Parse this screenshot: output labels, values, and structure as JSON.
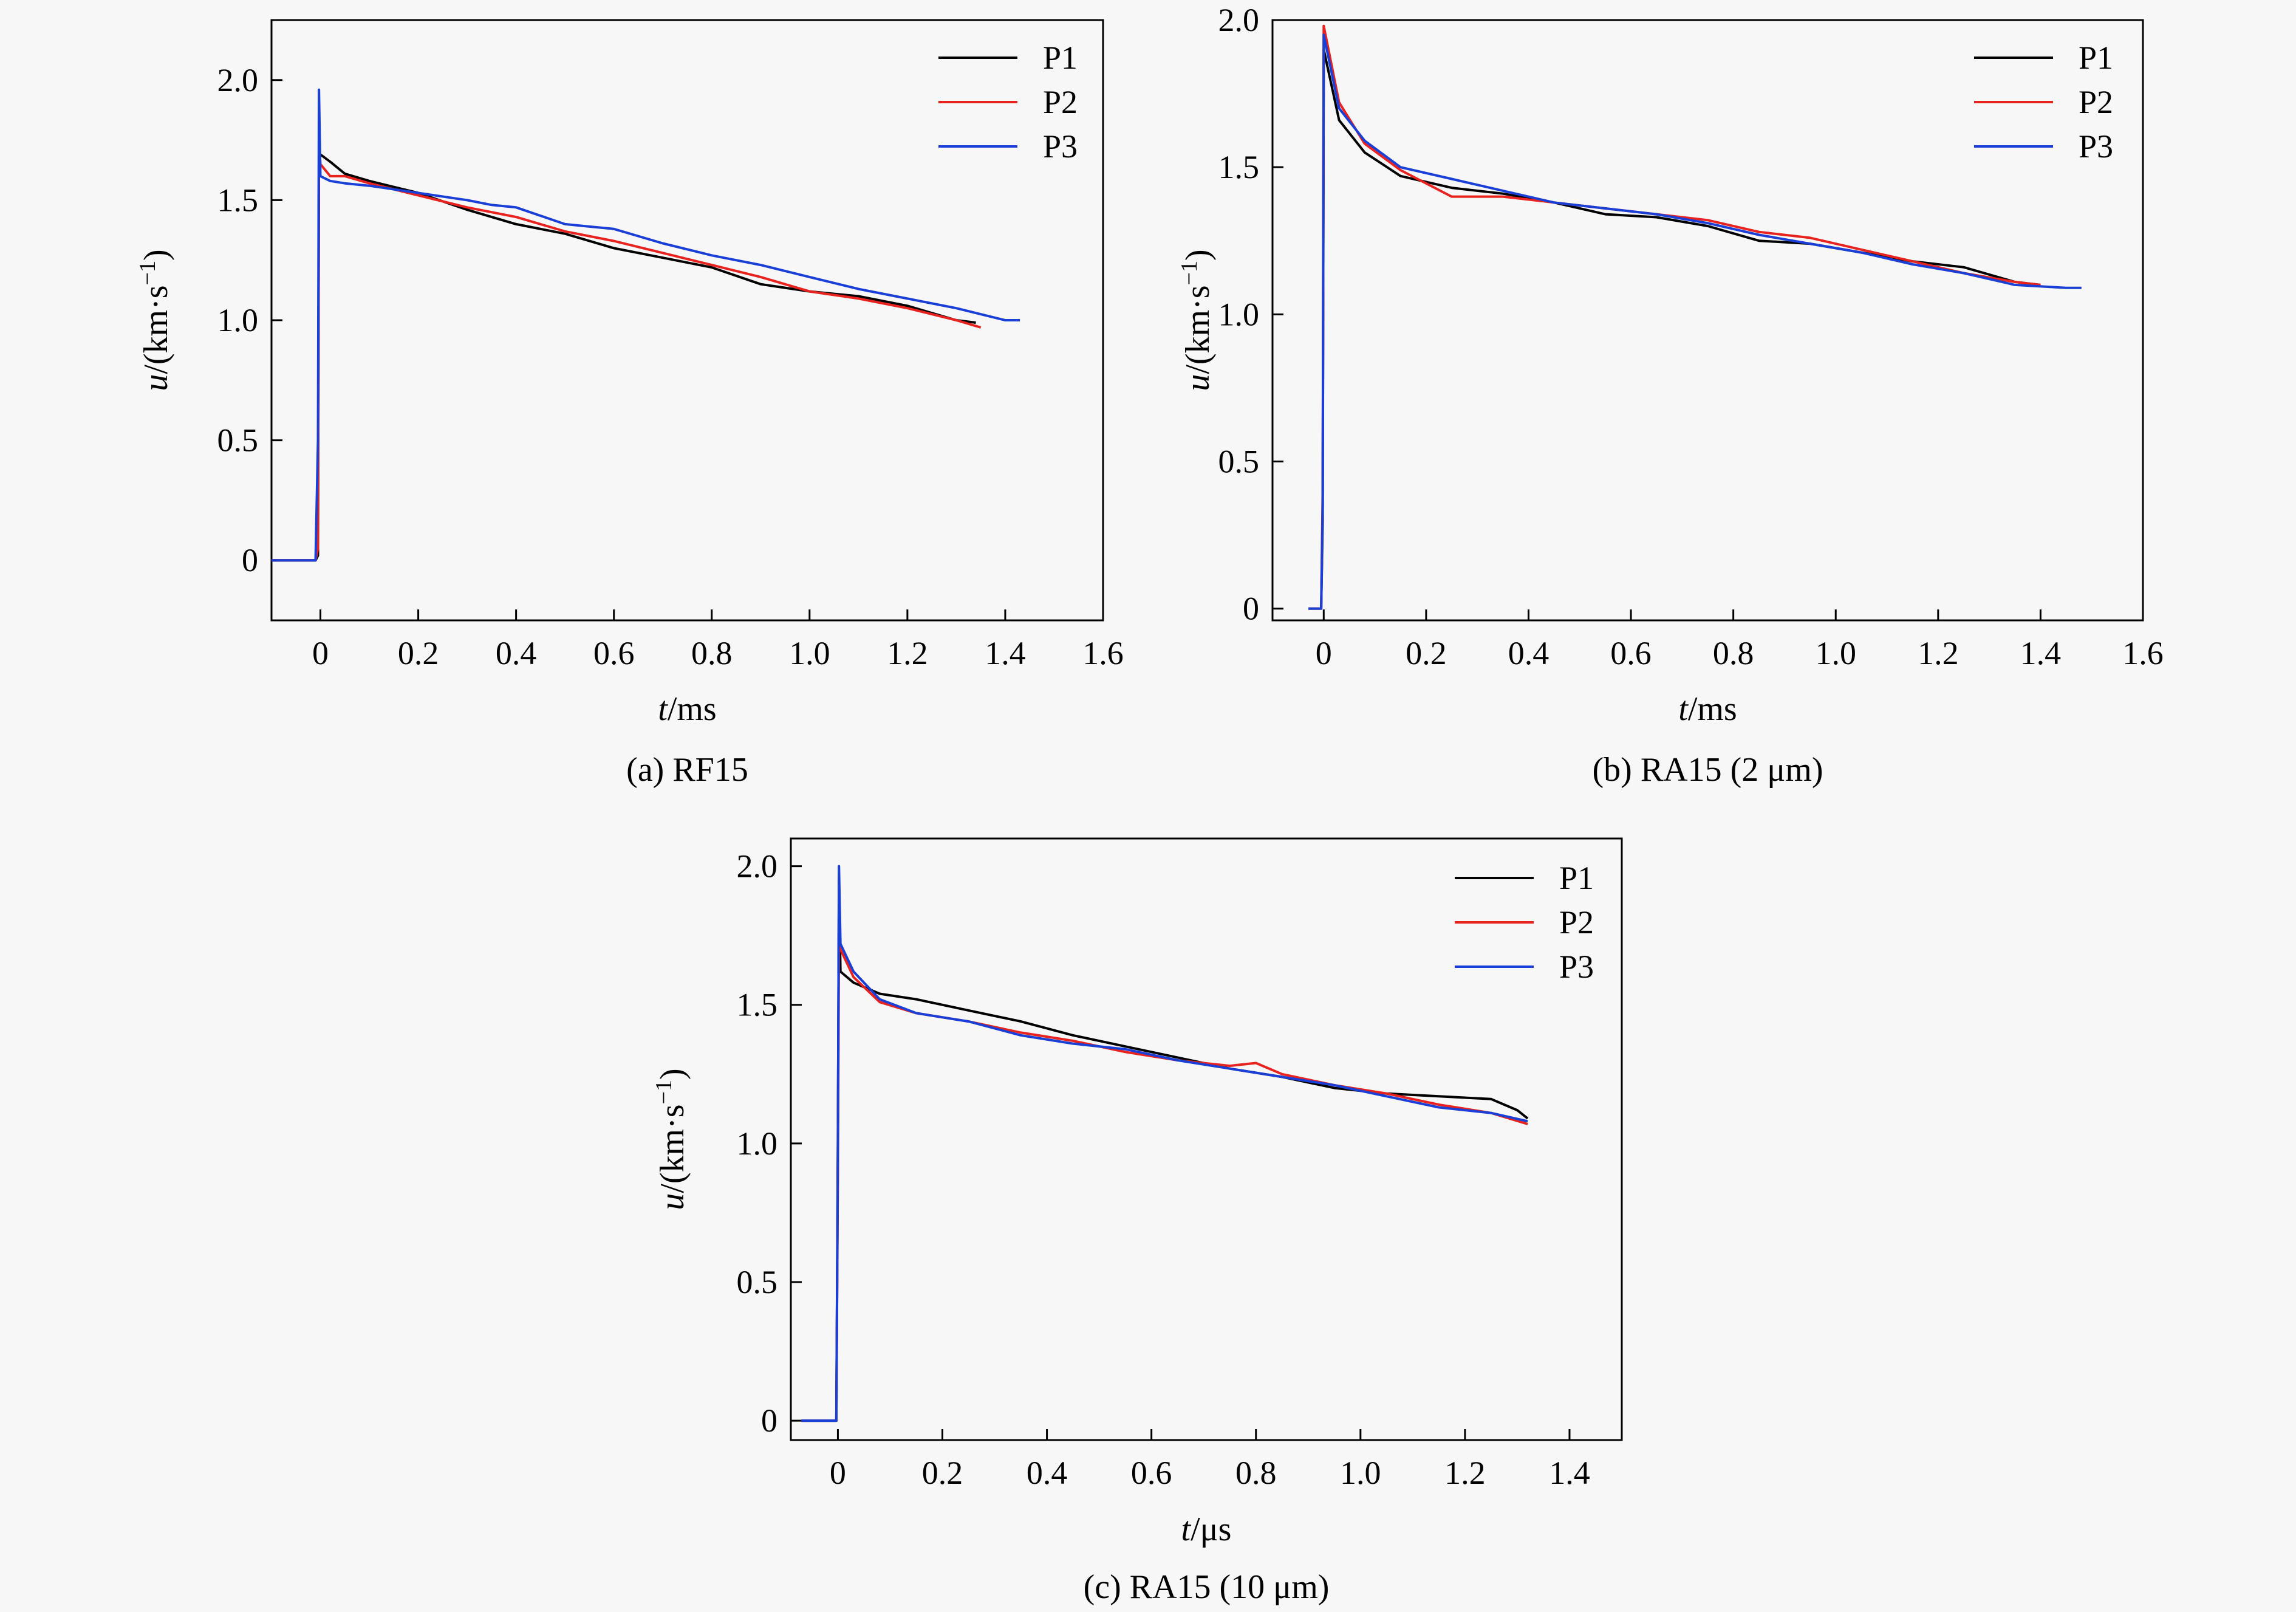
{
  "chart_data": [
    {
      "type": "line",
      "caption": "(a) RF15",
      "xlabel_italic": "t",
      "xlabel_unit": "/ms",
      "ylabel_italic": "u",
      "ylabel_unit": "/(km·s",
      "ylabel_sup": "−1",
      "ylabel_close": ")",
      "xlim": [
        -0.1,
        1.6
      ],
      "ylim": [
        -0.25,
        2.25
      ],
      "xticks": [
        0,
        0.2,
        0.4,
        0.6,
        0.8,
        1.0,
        1.2,
        1.4,
        1.6
      ],
      "xtick_labels": [
        "0",
        "0.2",
        "0.4",
        "0.6",
        "0.8",
        "1.0",
        "1.2",
        "1.4",
        "1.6"
      ],
      "yticks": [
        0,
        0.5,
        1.0,
        1.5,
        2.0
      ],
      "ytick_labels": [
        "0",
        "0.5",
        "1.0",
        "1.5",
        "2.0"
      ],
      "legend_position": "top-right",
      "series": [
        {
          "name": "P1",
          "color": "#000000",
          "x": [
            -0.1,
            -0.01,
            -0.005,
            -0.003,
            0.0,
            0.02,
            0.05,
            0.1,
            0.2,
            0.3,
            0.4,
            0.5,
            0.6,
            0.7,
            0.8,
            0.9,
            1.0,
            1.1,
            1.2,
            1.3,
            1.34
          ],
          "y": [
            0,
            0,
            0.02,
            1.7,
            1.69,
            1.66,
            1.61,
            1.58,
            1.53,
            1.46,
            1.4,
            1.36,
            1.3,
            1.26,
            1.22,
            1.15,
            1.12,
            1.1,
            1.06,
            1.0,
            0.99
          ]
        },
        {
          "name": "P2",
          "color": "#e8231f",
          "x": [
            -0.1,
            -0.01,
            -0.005,
            -0.003,
            0.0,
            0.02,
            0.05,
            0.1,
            0.2,
            0.3,
            0.4,
            0.5,
            0.6,
            0.7,
            0.8,
            0.9,
            1.0,
            1.1,
            1.2,
            1.3,
            1.35
          ],
          "y": [
            0,
            0,
            0.05,
            1.75,
            1.65,
            1.6,
            1.6,
            1.57,
            1.52,
            1.47,
            1.43,
            1.37,
            1.33,
            1.28,
            1.23,
            1.18,
            1.12,
            1.09,
            1.05,
            1.0,
            0.97
          ]
        },
        {
          "name": "P3",
          "color": "#1a3fd6",
          "x": [
            -0.1,
            -0.01,
            -0.005,
            -0.003,
            0.0,
            0.02,
            0.05,
            0.1,
            0.2,
            0.3,
            0.35,
            0.4,
            0.5,
            0.55,
            0.6,
            0.7,
            0.8,
            0.9,
            1.0,
            1.1,
            1.2,
            1.3,
            1.4,
            1.43
          ],
          "y": [
            0,
            0,
            0.5,
            1.96,
            1.6,
            1.58,
            1.57,
            1.56,
            1.53,
            1.5,
            1.48,
            1.47,
            1.4,
            1.39,
            1.38,
            1.32,
            1.27,
            1.23,
            1.18,
            1.13,
            1.09,
            1.05,
            1.0,
            1.0
          ]
        }
      ]
    },
    {
      "type": "line",
      "caption": "(b) RA15 (2 μm)",
      "xlabel_italic": "t",
      "xlabel_unit": "/ms",
      "ylabel_italic": "u",
      "ylabel_unit": "/(km·s",
      "ylabel_sup": "−1",
      "ylabel_close": ")",
      "xlim": [
        -0.1,
        1.6
      ],
      "ylim": [
        -0.04,
        2.0
      ],
      "xticks": [
        0,
        0.2,
        0.4,
        0.6,
        0.8,
        1.0,
        1.2,
        1.4,
        1.6
      ],
      "xtick_labels": [
        "0",
        "0.2",
        "0.4",
        "0.6",
        "0.8",
        "1.0",
        "1.2",
        "1.4",
        "1.6"
      ],
      "yticks": [
        0,
        0.5,
        1.0,
        1.5,
        2.0
      ],
      "ytick_labels": [
        "0",
        "0.5",
        "1.0",
        "1.5",
        "2.0"
      ],
      "legend_position": "top-right",
      "series": [
        {
          "name": "P1",
          "color": "#000000",
          "x": [
            -0.03,
            -0.005,
            -0.002,
            0.0,
            0.03,
            0.08,
            0.15,
            0.25,
            0.35,
            0.45,
            0.55,
            0.65,
            0.75,
            0.85,
            0.95,
            1.05,
            1.15,
            1.25,
            1.35,
            1.4
          ],
          "y": [
            0,
            0,
            0.3,
            1.9,
            1.66,
            1.55,
            1.47,
            1.43,
            1.41,
            1.38,
            1.34,
            1.33,
            1.3,
            1.25,
            1.24,
            1.21,
            1.18,
            1.16,
            1.11,
            1.1
          ]
        },
        {
          "name": "P2",
          "color": "#e8231f",
          "x": [
            -0.03,
            -0.005,
            -0.002,
            0.0,
            0.03,
            0.08,
            0.15,
            0.25,
            0.35,
            0.45,
            0.55,
            0.65,
            0.75,
            0.85,
            0.95,
            1.05,
            1.15,
            1.25,
            1.35,
            1.4
          ],
          "y": [
            0,
            0,
            0.4,
            1.98,
            1.72,
            1.58,
            1.49,
            1.4,
            1.4,
            1.38,
            1.36,
            1.34,
            1.32,
            1.28,
            1.26,
            1.22,
            1.18,
            1.14,
            1.11,
            1.1
          ]
        },
        {
          "name": "P3",
          "color": "#1a3fd6",
          "x": [
            -0.03,
            -0.005,
            -0.002,
            0.0,
            0.03,
            0.08,
            0.15,
            0.25,
            0.35,
            0.45,
            0.55,
            0.65,
            0.75,
            0.85,
            0.95,
            1.05,
            1.15,
            1.25,
            1.35,
            1.45,
            1.48
          ],
          "y": [
            0,
            0,
            0.35,
            1.95,
            1.7,
            1.59,
            1.5,
            1.46,
            1.42,
            1.38,
            1.36,
            1.34,
            1.31,
            1.27,
            1.24,
            1.21,
            1.17,
            1.14,
            1.1,
            1.09,
            1.09
          ]
        }
      ]
    },
    {
      "type": "line",
      "caption": "(c) RA15 (10 μm)",
      "xlabel_italic": "t",
      "xlabel_unit": "/μs",
      "ylabel_italic": "u",
      "ylabel_unit": "/(km·s",
      "ylabel_sup": "−1",
      "ylabel_close": ")",
      "xlim": [
        -0.09,
        1.5
      ],
      "ylim": [
        -0.07,
        2.1
      ],
      "xticks": [
        0,
        0.2,
        0.4,
        0.6,
        0.8,
        1.0,
        1.2,
        1.4
      ],
      "xtick_labels": [
        "0",
        "0.2",
        "0.4",
        "0.6",
        "0.8",
        "1.0",
        "1.2",
        "1.4"
      ],
      "yticks": [
        0,
        0.5,
        1.0,
        1.5,
        2.0
      ],
      "ytick_labels": [
        "0",
        "0.5",
        "1.0",
        "1.5",
        "2.0"
      ],
      "legend_position": "top-right",
      "series": [
        {
          "name": "P1",
          "color": "#000000",
          "x": [
            -0.07,
            -0.003,
            0.0,
            0.002,
            0.005,
            0.03,
            0.08,
            0.15,
            0.25,
            0.35,
            0.45,
            0.55,
            0.65,
            0.75,
            0.85,
            0.95,
            1.05,
            1.15,
            1.25,
            1.3,
            1.32
          ],
          "y": [
            0,
            0,
            1.0,
            1.95,
            1.62,
            1.58,
            1.54,
            1.52,
            1.48,
            1.44,
            1.39,
            1.35,
            1.31,
            1.27,
            1.24,
            1.2,
            1.18,
            1.17,
            1.16,
            1.12,
            1.09
          ]
        },
        {
          "name": "P2",
          "color": "#e8231f",
          "x": [
            -0.07,
            -0.003,
            0.0,
            0.002,
            0.005,
            0.03,
            0.08,
            0.15,
            0.25,
            0.35,
            0.45,
            0.55,
            0.65,
            0.75,
            0.8,
            0.85,
            0.95,
            1.05,
            1.15,
            1.25,
            1.32
          ],
          "y": [
            0,
            0,
            0.9,
            1.75,
            1.7,
            1.6,
            1.51,
            1.47,
            1.44,
            1.4,
            1.37,
            1.33,
            1.3,
            1.28,
            1.29,
            1.25,
            1.21,
            1.18,
            1.14,
            1.11,
            1.07
          ]
        },
        {
          "name": "P3",
          "color": "#1a3fd6",
          "x": [
            -0.07,
            -0.003,
            0.0,
            0.002,
            0.005,
            0.03,
            0.08,
            0.15,
            0.25,
            0.35,
            0.45,
            0.55,
            0.65,
            0.75,
            0.85,
            0.95,
            1.05,
            1.15,
            1.25,
            1.32
          ],
          "y": [
            0,
            0,
            0.95,
            2.0,
            1.72,
            1.62,
            1.52,
            1.47,
            1.44,
            1.39,
            1.36,
            1.34,
            1.3,
            1.27,
            1.24,
            1.21,
            1.17,
            1.13,
            1.11,
            1.08
          ]
        }
      ]
    }
  ]
}
